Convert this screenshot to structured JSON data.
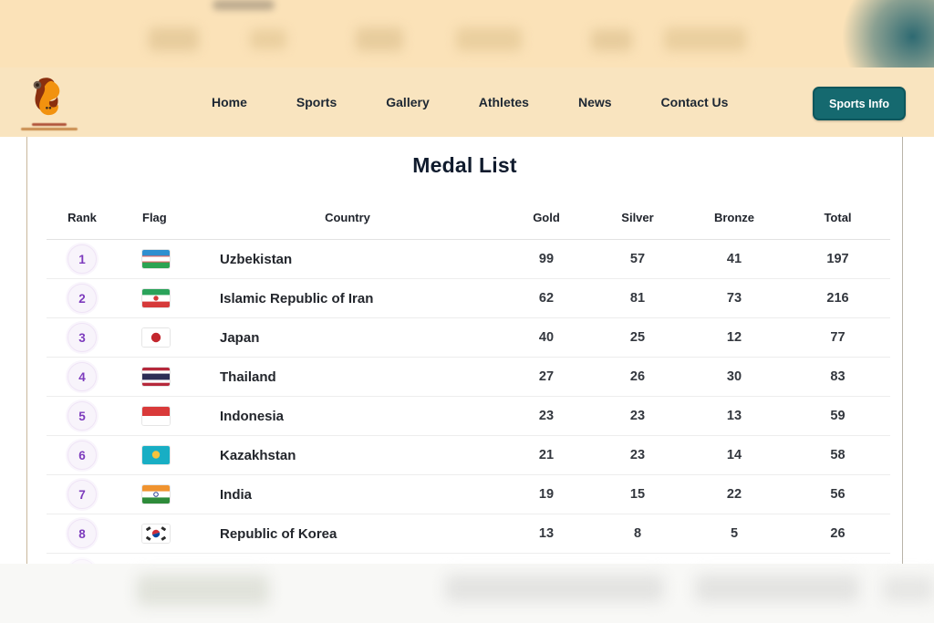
{
  "header": {
    "nav": [
      "Home",
      "Sports",
      "Gallery",
      "Athletes",
      "News",
      "Contact Us"
    ],
    "cta_label": "Sports Info"
  },
  "page": {
    "title": "Medal List"
  },
  "table": {
    "columns": [
      "Rank",
      "Flag",
      "Country",
      "Gold",
      "Silver",
      "Bronze",
      "Total"
    ],
    "rows": [
      {
        "rank": 1,
        "flag": "uz",
        "country": "Uzbekistan",
        "gold": 99,
        "silver": 57,
        "bronze": 41,
        "total": 197
      },
      {
        "rank": 2,
        "flag": "ir",
        "country": "Islamic Republic of Iran",
        "gold": 62,
        "silver": 81,
        "bronze": 73,
        "total": 216
      },
      {
        "rank": 3,
        "flag": "jp",
        "country": "Japan",
        "gold": 40,
        "silver": 25,
        "bronze": 12,
        "total": 77
      },
      {
        "rank": 4,
        "flag": "th",
        "country": "Thailand",
        "gold": 27,
        "silver": 26,
        "bronze": 30,
        "total": 83
      },
      {
        "rank": 5,
        "flag": "id",
        "country": "Indonesia",
        "gold": 23,
        "silver": 23,
        "bronze": 13,
        "total": 59
      },
      {
        "rank": 6,
        "flag": "kz",
        "country": "Kazakhstan",
        "gold": 21,
        "silver": 23,
        "bronze": 14,
        "total": 58
      },
      {
        "rank": 7,
        "flag": "in",
        "country": "India",
        "gold": 19,
        "silver": 15,
        "bronze": 22,
        "total": 56
      },
      {
        "rank": 8,
        "flag": "kr",
        "country": "Republic of Korea",
        "gold": 13,
        "silver": 8,
        "bronze": 5,
        "total": 26
      }
    ]
  },
  "colors": {
    "accent_teal": "#15696f",
    "header_beige": "#fae3bc",
    "rank_purple": "#7d3bbd"
  }
}
